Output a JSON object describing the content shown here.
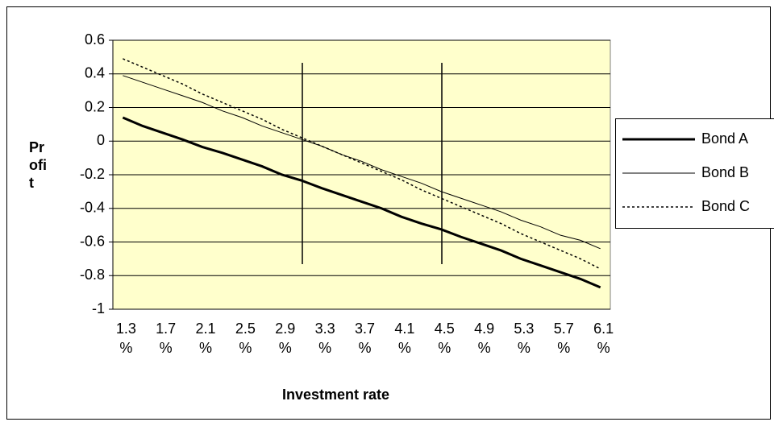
{
  "chart_data": {
    "type": "line",
    "x_label": "Investment rate",
    "y_label": "Profit",
    "categories": [
      "1.3 %",
      null,
      "1.7 %",
      null,
      "2.1 %",
      null,
      "2.5 %",
      null,
      "2.9 %",
      null,
      "3.3 %",
      null,
      "3.7 %",
      null,
      "4.1 %",
      null,
      "4.5 %",
      null,
      "4.9 %",
      null,
      "5.3 %",
      null,
      "5.7 %",
      null,
      "6.1 %"
    ],
    "series": [
      {
        "name": "Bond A",
        "color": "#000000",
        "line_width": 3,
        "dashed": false,
        "values": [
          0.14,
          0.09,
          0.05,
          0.01,
          -0.035,
          -0.07,
          -0.11,
          -0.15,
          -0.2,
          -0.235,
          -0.28,
          -0.32,
          -0.36,
          -0.4,
          -0.45,
          -0.49,
          -0.525,
          -0.57,
          -0.61,
          -0.65,
          -0.7,
          -0.74,
          -0.78,
          -0.82,
          -0.87
        ]
      },
      {
        "name": "Bond B",
        "color": "#000000",
        "line_width": 1,
        "dashed": false,
        "values": [
          0.39,
          0.35,
          0.31,
          0.27,
          0.23,
          0.18,
          0.14,
          0.09,
          0.05,
          0.01,
          -0.03,
          -0.08,
          -0.12,
          -0.17,
          -0.21,
          -0.25,
          -0.3,
          -0.34,
          -0.38,
          -0.42,
          -0.47,
          -0.51,
          -0.56,
          -0.59,
          -0.64
        ]
      },
      {
        "name": "Bond C",
        "color": "#000000",
        "line_width": 1.5,
        "dashed": true,
        "values": [
          0.49,
          0.44,
          0.39,
          0.34,
          0.28,
          0.23,
          0.18,
          0.13,
          0.07,
          0.02,
          -0.03,
          -0.08,
          -0.13,
          -0.18,
          -0.23,
          -0.29,
          -0.34,
          -0.39,
          -0.44,
          -0.49,
          -0.55,
          -0.6,
          -0.65,
          -0.7,
          -0.76
        ]
      }
    ],
    "ylim": [
      -1,
      0.6
    ],
    "yticks": [
      -1,
      -0.8,
      -0.6,
      -0.4,
      -0.2,
      0,
      0.2,
      0.4,
      0.6
    ],
    "grid": true,
    "plot_background": "#ffffcc",
    "legend": "right"
  }
}
